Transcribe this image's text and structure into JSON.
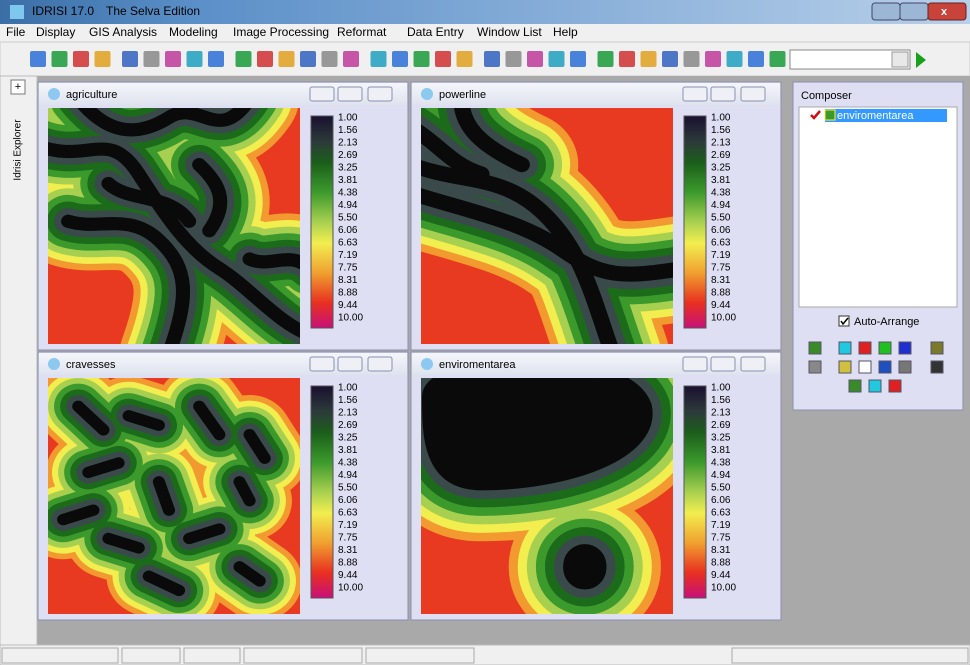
{
  "title_bar": {
    "app": "IDRISI 17.0",
    "edition": "The Selva Edition"
  },
  "menu": [
    "File",
    "Display",
    "GIS Analysis",
    "Modeling",
    "Image Processing",
    "Reformat",
    "Data Entry",
    "Window List",
    "Help"
  ],
  "explorer_tab": "Idrisi Explorer",
  "windows": [
    {
      "title": "agriculture",
      "legend": [
        "1.00",
        "1.56",
        "2.13",
        "2.69",
        "3.25",
        "3.81",
        "4.38",
        "4.94",
        "5.50",
        "6.06",
        "6.63",
        "7.19",
        "7.75",
        "8.31",
        "8.88",
        "9.44",
        "10.00"
      ]
    },
    {
      "title": "powerline",
      "legend": [
        "1.00",
        "1.56",
        "2.13",
        "2.69",
        "3.25",
        "3.81",
        "4.38",
        "4.94",
        "5.50",
        "6.06",
        "6.63",
        "7.19",
        "7.75",
        "8.31",
        "8.88",
        "9.44",
        "10.00"
      ]
    },
    {
      "title": "cravesses",
      "legend": [
        "1.00",
        "1.56",
        "2.13",
        "2.69",
        "3.25",
        "3.81",
        "4.38",
        "4.94",
        "5.50",
        "6.06",
        "6.63",
        "7.19",
        "7.75",
        "8.31",
        "8.88",
        "9.44",
        "10.00"
      ]
    },
    {
      "title": "enviromentarea",
      "legend": [
        "1.00",
        "1.56",
        "2.13",
        "2.69",
        "3.25",
        "3.81",
        "4.38",
        "4.94",
        "5.50",
        "6.06",
        "6.63",
        "7.19",
        "7.75",
        "8.31",
        "8.88",
        "9.44",
        "10.00"
      ]
    }
  ],
  "composer": {
    "title": "Composer",
    "layers": [
      "enviromentarea"
    ],
    "auto_arrange": "Auto-Arrange"
  }
}
